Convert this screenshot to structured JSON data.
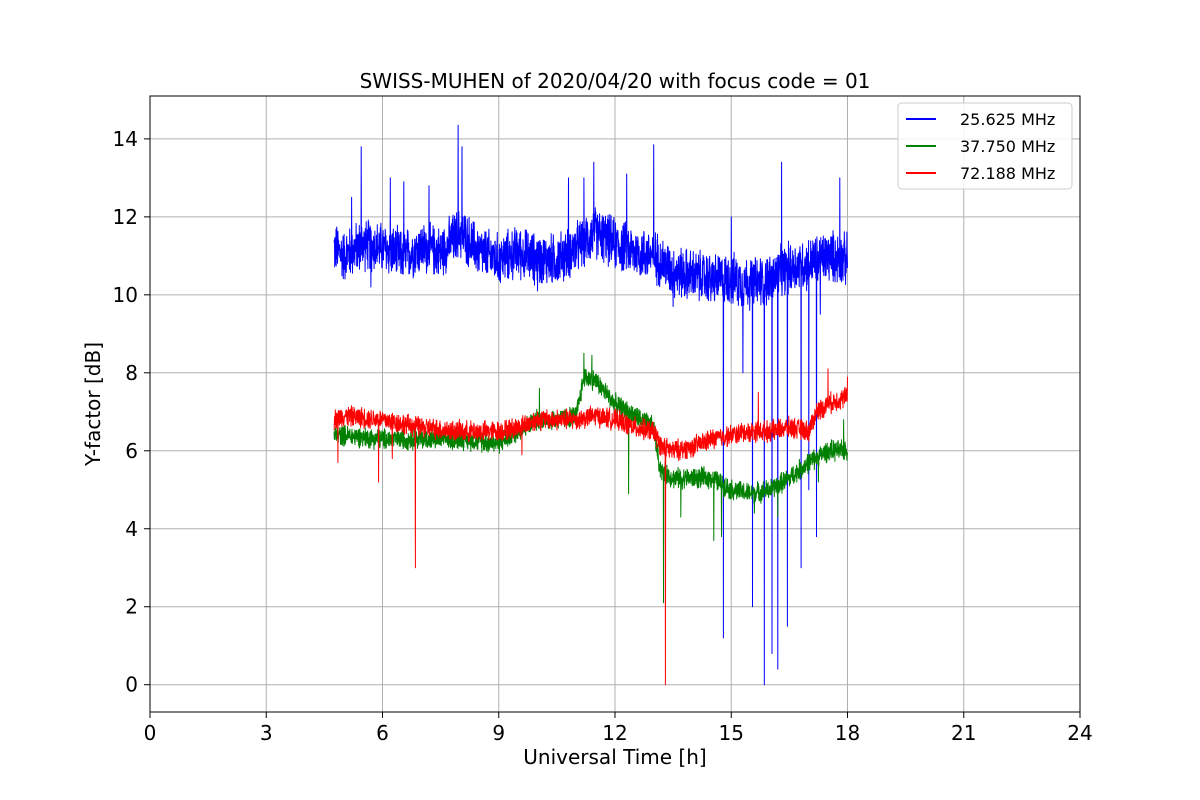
{
  "chart_data": {
    "type": "line",
    "title": "SWISS-MUHEN of 2020/04/20 with focus code = 01",
    "xlabel": "Universal Time [h]",
    "ylabel": "Y-factor [dB]",
    "xlim": [
      0,
      24
    ],
    "ylim": [
      -0.7,
      15.1
    ],
    "xticks": [
      0,
      3,
      6,
      9,
      12,
      15,
      18,
      21,
      24
    ],
    "xtick_labels": [
      "0",
      "3",
      "6",
      "9",
      "12",
      "15",
      "18",
      "21",
      "24"
    ],
    "yticks": [
      0,
      2,
      4,
      6,
      8,
      10,
      12,
      14
    ],
    "ytick_labels": [
      "0",
      "2",
      "4",
      "6",
      "8",
      "10",
      "12",
      "14"
    ],
    "grid": true,
    "legend_position": "top-right",
    "series": [
      {
        "name": "25.625 MHz",
        "color": "#0000ff",
        "x": [
          4.75,
          5.0,
          5.5,
          6.0,
          6.5,
          7.0,
          7.5,
          8.0,
          8.5,
          9.0,
          9.5,
          10.0,
          10.5,
          11.0,
          11.5,
          12.0,
          12.5,
          13.0,
          13.5,
          14.0,
          14.5,
          15.0,
          15.5,
          16.0,
          16.5,
          17.0,
          17.5,
          18.0
        ],
        "values": [
          11.2,
          11.0,
          11.3,
          11.2,
          11.0,
          11.2,
          11.1,
          11.6,
          11.1,
          10.9,
          11.1,
          10.9,
          10.9,
          11.2,
          11.6,
          11.3,
          11.1,
          11.0,
          10.6,
          10.5,
          10.4,
          10.4,
          10.3,
          10.4,
          10.7,
          10.8,
          11.0,
          10.9
        ],
        "spikes": [
          [
            5.2,
            12.5
          ],
          [
            5.45,
            13.8
          ],
          [
            5.7,
            10.2
          ],
          [
            6.2,
            13.0
          ],
          [
            6.55,
            12.9
          ],
          [
            7.2,
            12.8
          ],
          [
            7.95,
            14.35
          ],
          [
            8.05,
            13.8
          ],
          [
            10.0,
            10.1
          ],
          [
            10.8,
            13.0
          ],
          [
            11.2,
            13.0
          ],
          [
            11.45,
            13.4
          ],
          [
            12.3,
            13.1
          ],
          [
            13.0,
            13.85
          ],
          [
            13.5,
            9.7
          ],
          [
            14.8,
            1.2
          ],
          [
            15.0,
            12.0
          ],
          [
            15.3,
            8.0
          ],
          [
            15.55,
            2.0
          ],
          [
            15.85,
            0.0
          ],
          [
            16.05,
            0.8
          ],
          [
            16.2,
            0.4
          ],
          [
            16.3,
            13.4
          ],
          [
            16.45,
            1.5
          ],
          [
            16.8,
            3.0
          ],
          [
            17.0,
            5.0
          ],
          [
            17.2,
            3.8
          ],
          [
            17.3,
            9.5
          ],
          [
            17.8,
            13.0
          ]
        ]
      },
      {
        "name": "37.750 MHz",
        "color": "#008000",
        "x": [
          4.75,
          5.0,
          6.0,
          7.0,
          8.0,
          9.0,
          10.0,
          10.5,
          11.0,
          11.2,
          11.5,
          12.0,
          12.5,
          13.0,
          13.15,
          13.2,
          13.5,
          14.0,
          14.5,
          15.0,
          15.5,
          16.0,
          16.5,
          17.0,
          17.5,
          18.0
        ],
        "values": [
          6.4,
          6.4,
          6.3,
          6.3,
          6.3,
          6.2,
          6.8,
          6.8,
          6.9,
          7.9,
          7.8,
          7.2,
          6.9,
          6.6,
          5.6,
          5.5,
          5.3,
          5.3,
          5.3,
          5.0,
          4.9,
          5.0,
          5.3,
          5.7,
          6.0,
          6.0
        ],
        "spikes": [
          [
            10.05,
            7.6
          ],
          [
            11.2,
            8.5
          ],
          [
            11.4,
            8.45
          ],
          [
            12.35,
            4.9
          ],
          [
            13.25,
            2.1
          ],
          [
            13.7,
            4.3
          ],
          [
            14.55,
            3.7
          ],
          [
            14.75,
            3.8
          ],
          [
            15.6,
            4.4
          ],
          [
            16.2,
            4.3
          ],
          [
            17.25,
            5.2
          ],
          [
            17.9,
            6.8
          ]
        ]
      },
      {
        "name": "72.188 MHz",
        "color": "#ff0000",
        "x": [
          4.75,
          5.0,
          6.0,
          7.0,
          8.0,
          9.0,
          9.5,
          10.0,
          10.5,
          11.0,
          11.5,
          12.0,
          12.5,
          13.0,
          13.2,
          13.5,
          14.0,
          14.5,
          15.0,
          15.5,
          16.0,
          16.5,
          17.0,
          17.2,
          17.5,
          18.0
        ],
        "values": [
          6.8,
          6.9,
          6.8,
          6.6,
          6.5,
          6.5,
          6.6,
          6.8,
          6.8,
          6.8,
          6.9,
          6.8,
          6.6,
          6.5,
          6.1,
          6.0,
          6.1,
          6.3,
          6.4,
          6.5,
          6.5,
          6.6,
          6.5,
          7.0,
          7.2,
          7.4
        ],
        "spikes": [
          [
            4.85,
            5.7
          ],
          [
            5.9,
            5.2
          ],
          [
            6.25,
            5.8
          ],
          [
            6.85,
            3.0
          ],
          [
            9.6,
            5.9
          ],
          [
            13.3,
            0.0
          ],
          [
            15.7,
            7.5
          ],
          [
            17.5,
            8.1
          ],
          [
            18.0,
            7.9
          ]
        ]
      }
    ]
  }
}
